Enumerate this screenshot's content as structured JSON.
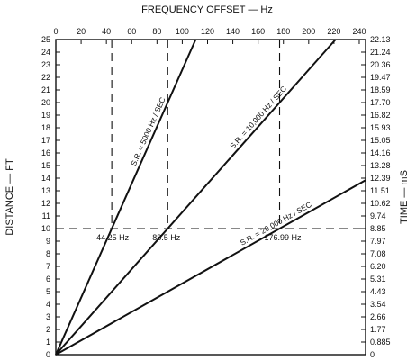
{
  "chart_data": {
    "type": "line",
    "top_axis": {
      "label": "FREQUENCY OFFSET — Hz",
      "ticks": [
        "0",
        "20",
        "40",
        "60",
        "80",
        "100",
        "120",
        "140",
        "160",
        "180",
        "200",
        "220",
        "240"
      ],
      "range": [
        0,
        245
      ]
    },
    "left_axis": {
      "label": "DISTANCE — FT",
      "ticks": [
        "0",
        "1",
        "2",
        "3",
        "4",
        "5",
        "6",
        "7",
        "8",
        "9",
        "10",
        "11",
        "12",
        "13",
        "14",
        "15",
        "16",
        "17",
        "18",
        "19",
        "20",
        "21",
        "22",
        "23",
        "24",
        "25"
      ],
      "range": [
        0,
        25
      ]
    },
    "right_axis": {
      "label": "TIME — mS",
      "ticks": [
        "0",
        "0.885",
        "1.77",
        "2.66",
        "3.54",
        "4.43",
        "5.31",
        "6.20",
        "7.08",
        "7.97",
        "8.85",
        "9.74",
        "10.62",
        "11.51",
        "12.39",
        "13.28",
        "14.16",
        "15.05",
        "15.93",
        "16.82",
        "17.70",
        "18.59",
        "19.47",
        "20.36",
        "21.24",
        "22.13"
      ]
    },
    "series": [
      {
        "name": "S.R. = 5000 Hz / SEC",
        "x": [
          0,
          110.6
        ],
        "y": [
          0,
          25
        ]
      },
      {
        "name": "S.R. = 10,000 Hz / SEC",
        "x": [
          0,
          221.25
        ],
        "y": [
          0,
          25
        ]
      },
      {
        "name": "S.R. = 20,000 Hz / SEC",
        "x": [
          0,
          245
        ],
        "y": [
          0,
          13.84
        ]
      }
    ],
    "reference_distance": 10,
    "annotations": [
      {
        "label": "44.25 Hz",
        "x": 44.25,
        "y": 10
      },
      {
        "label": "88.5 Hz",
        "x": 88.5,
        "y": 10
      },
      {
        "label": "176.99 Hz",
        "x": 176.99,
        "y": 10
      }
    ],
    "grid": false
  }
}
